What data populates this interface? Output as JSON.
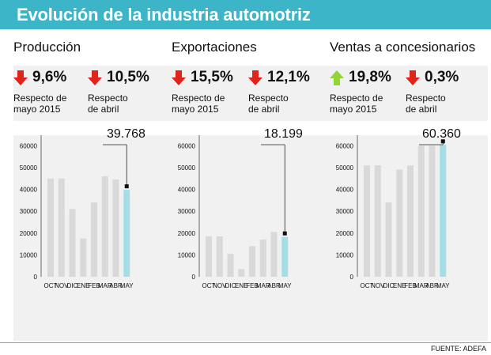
{
  "title": "Evolución de la industria automotriz",
  "source": "FUENTE: ADEFA",
  "colors": {
    "accent": "#3cb5c8",
    "down": "#e2231a",
    "up": "#93d43b",
    "bar": "#d9d9d9",
    "bar_highlight": "#a5dde4"
  },
  "panels": [
    {
      "name": "Producción",
      "stats": [
        {
          "value": "9,6%",
          "direction": "down",
          "line1": "Respecto de",
          "line2": "mayo 2015"
        },
        {
          "value": "10,5%",
          "direction": "down",
          "line1": "Respecto",
          "line2": "de abril"
        }
      ],
      "callout": "39.768"
    },
    {
      "name": "Exportaciones",
      "stats": [
        {
          "value": "15,5%",
          "direction": "down",
          "line1": "Respecto de",
          "line2": "mayo 2015"
        },
        {
          "value": "12,1%",
          "direction": "down",
          "line1": "Respecto",
          "line2": "de abril"
        }
      ],
      "callout": "18.199"
    },
    {
      "name": "Ventas a concesionarios",
      "stats": [
        {
          "value": "19,8%",
          "direction": "up",
          "line1": "Respecto de",
          "line2": "mayo 2015"
        },
        {
          "value": "0,3%",
          "direction": "down",
          "line1": "Respecto",
          "line2": "de abril"
        }
      ],
      "callout": "60.360"
    }
  ],
  "chart_data": [
    {
      "type": "bar",
      "categories": [
        "OCT",
        "NOV",
        "DIC",
        "ENE",
        "FEB",
        "MAR",
        "ABR",
        "MAY"
      ],
      "values": [
        45000,
        45000,
        31000,
        17500,
        34000,
        46000,
        44500,
        39768
      ],
      "ylim": [
        0,
        80000
      ],
      "yticks": [
        0,
        10000,
        20000,
        30000,
        40000,
        50000,
        60000,
        70000,
        80000
      ],
      "highlight_last": true,
      "grid": false
    },
    {
      "type": "bar",
      "categories": [
        "OCT",
        "NOV",
        "DIC",
        "ENE",
        "FEB",
        "MAR",
        "ABR",
        "MAY"
      ],
      "values": [
        18500,
        18500,
        10500,
        3500,
        14000,
        17000,
        20500,
        18199
      ],
      "ylim": [
        0,
        80000
      ],
      "yticks": [
        0,
        10000,
        20000,
        30000,
        40000,
        50000,
        60000,
        70000,
        80000
      ],
      "highlight_last": true,
      "grid": false
    },
    {
      "type": "bar",
      "categories": [
        "OCT",
        "NOV",
        "DIC",
        "ENE",
        "FEB",
        "MAR",
        "ABR",
        "MAY"
      ],
      "values": [
        51000,
        51000,
        34000,
        49000,
        51000,
        60000,
        60000,
        60360
      ],
      "ylim": [
        0,
        80000
      ],
      "yticks": [
        0,
        10000,
        20000,
        30000,
        40000,
        50000,
        60000,
        70000,
        80000
      ],
      "highlight_last": true,
      "grid": false
    }
  ]
}
